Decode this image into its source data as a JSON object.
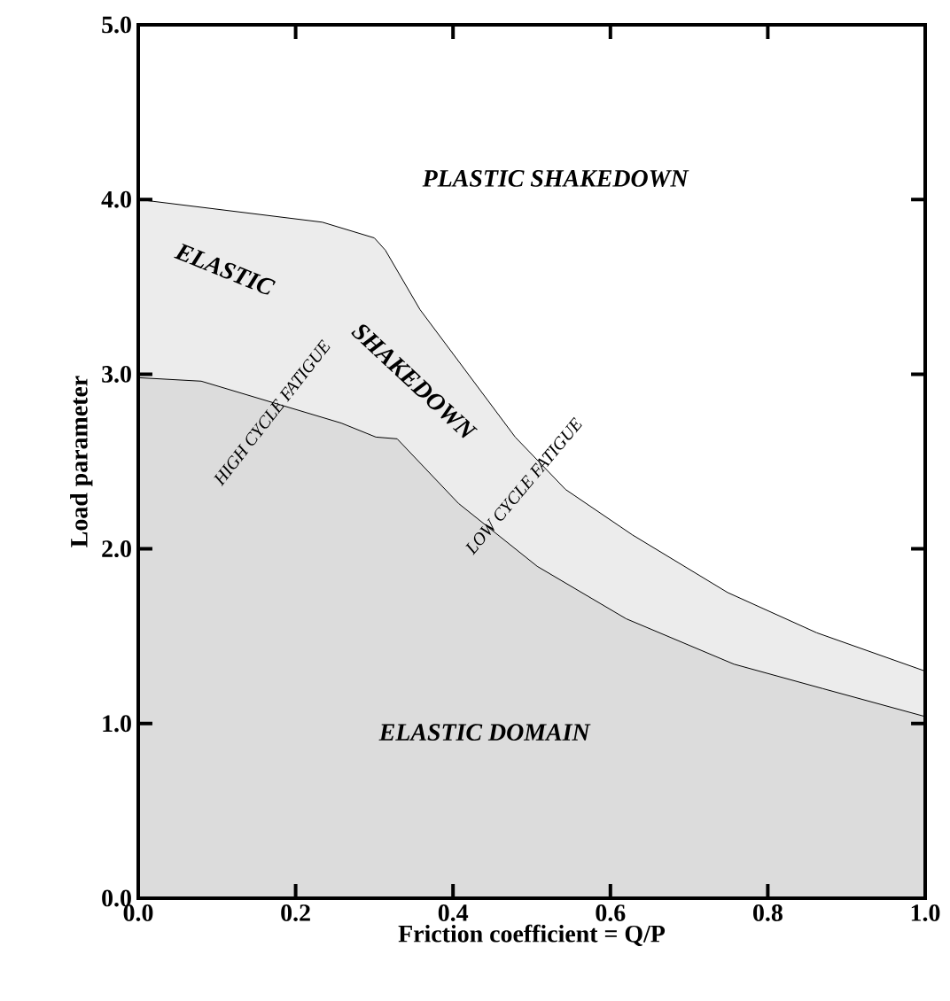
{
  "chart_data": {
    "type": "area",
    "xlabel": "Friction coefficient = Q/P",
    "ylabel": "Load parameter",
    "xlim": [
      0,
      1.0
    ],
    "ylim": [
      0,
      5.0
    ],
    "xticks": [
      {
        "value": 0,
        "label": "0.0"
      },
      {
        "value": 0.2,
        "label": "0.2"
      },
      {
        "value": 0.4,
        "label": "0.4"
      },
      {
        "value": 0.6,
        "label": "0.6"
      },
      {
        "value": 0.8,
        "label": "0.8"
      },
      {
        "value": 1.0,
        "label": "1.0"
      }
    ],
    "yticks": [
      {
        "value": 0,
        "label": "0.0"
      },
      {
        "value": 1,
        "label": "1.0"
      },
      {
        "value": 2,
        "label": "2.0"
      },
      {
        "value": 3,
        "label": "3.0"
      },
      {
        "value": 4,
        "label": "4.0"
      },
      {
        "value": 5,
        "label": "5.0"
      }
    ],
    "grid": false,
    "series": [
      {
        "color": "#ececec",
        "x": [
          0,
          0.234,
          0.3,
          0.314,
          0.358,
          0.479,
          0.543,
          0.628,
          0.749,
          0.862,
          1.0
        ],
        "values": [
          4.0,
          3.87,
          3.78,
          3.71,
          3.37,
          2.64,
          2.34,
          2.08,
          1.75,
          1.52,
          1.3
        ]
      },
      {
        "color": "#dcdcdc",
        "x": [
          0,
          0.08,
          0.258,
          0.302,
          0.329,
          0.407,
          0.507,
          0.62,
          0.757,
          0.87,
          1.0
        ],
        "values": [
          2.98,
          2.96,
          2.72,
          2.64,
          2.63,
          2.26,
          1.9,
          1.6,
          1.34,
          1.2,
          1.04
        ]
      }
    ],
    "annotations": [
      "PLASTIC SHAKEDOWN",
      "ELASTIC",
      "SHAKEDOWN",
      "HIGH CYCLE FATIGUE",
      "LOW CYCLE FATIGUE",
      "ELASTIC DOMAIN"
    ]
  }
}
